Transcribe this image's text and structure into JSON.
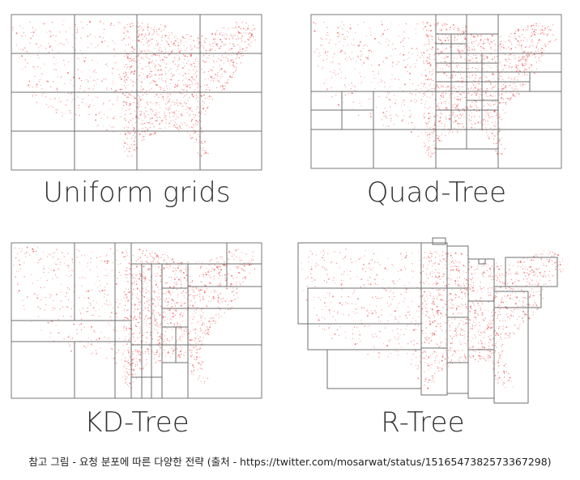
{
  "panels": [
    {
      "title": "Uniform grids"
    },
    {
      "title": "Quad-Tree"
    },
    {
      "title": "KD-Tree"
    },
    {
      "title": "R-Tree"
    }
  ],
  "colors": {
    "points": "#ec5a5a",
    "grid": "#6f6f6f",
    "title": "#333333"
  },
  "caption": "참고 그림 - 요청 분포에 따른 다양한 전략 (출처 - https://twitter.com/mosarwat/status/1516547382573367298)"
}
